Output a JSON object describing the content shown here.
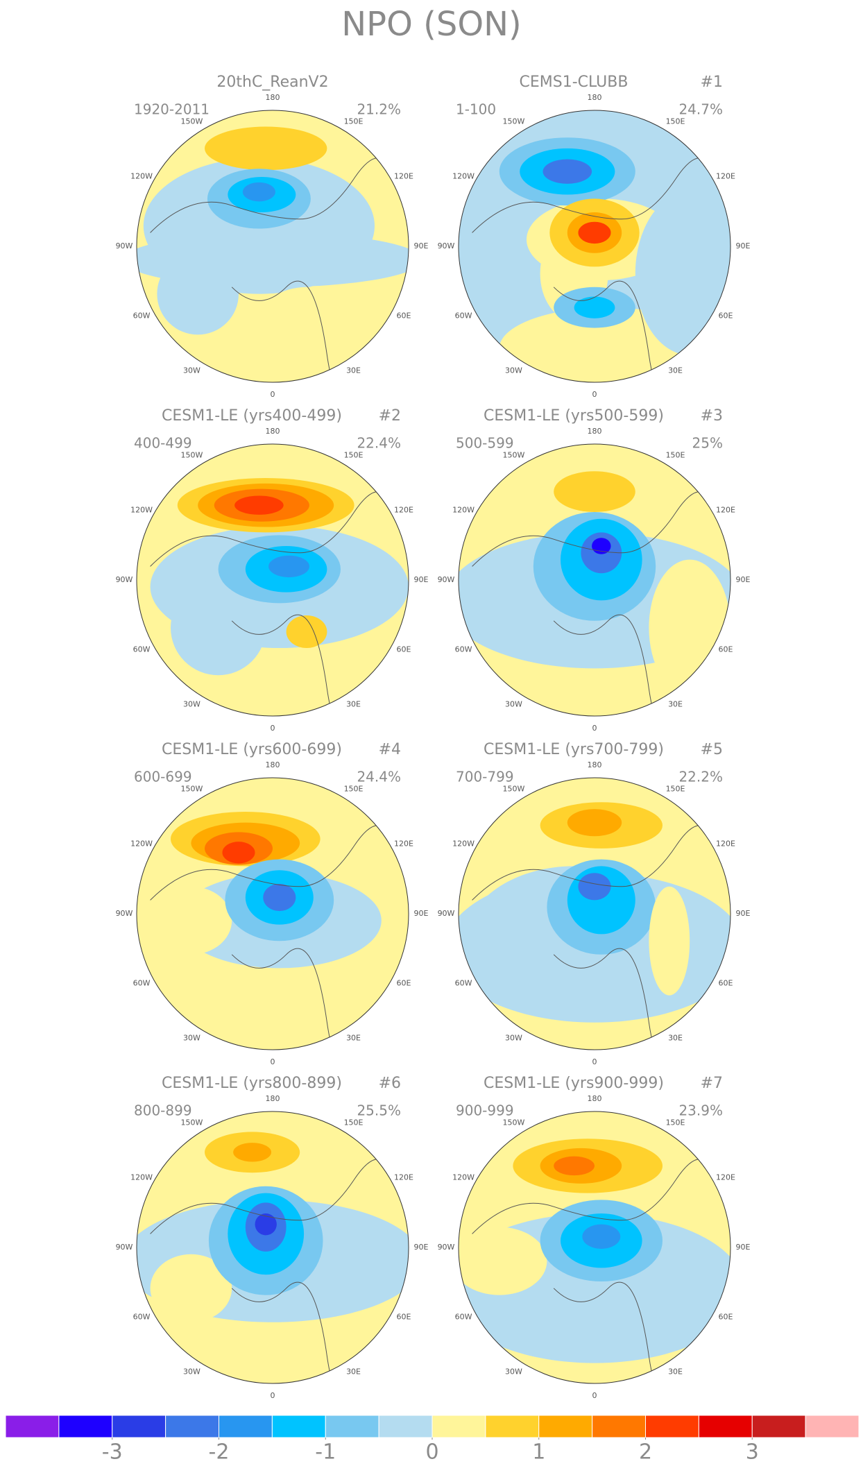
{
  "title": "NPO (SON)",
  "longitude_labels": [
    "180",
    "150W",
    "150E",
    "120W",
    "120E",
    "90W",
    "90E",
    "60W",
    "60E",
    "30W",
    "30E",
    "0"
  ],
  "panels": [
    {
      "title": "20thC_ReanV2",
      "period": "1920-2011",
      "percent": "21.2%"
    },
    {
      "title": "CEMS1-CLUBB",
      "number": "#1",
      "period": "1-100",
      "percent": "24.7%"
    },
    {
      "title": "CESM1-LE (yrs400-499)",
      "number": "#2",
      "period": "400-499",
      "percent": "22.4%"
    },
    {
      "title": "CESM1-LE (yrs500-599)",
      "number": "#3",
      "period": "500-599",
      "percent": "25%"
    },
    {
      "title": "CESM1-LE (yrs600-699)",
      "number": "#4",
      "period": "600-699",
      "percent": "24.4%"
    },
    {
      "title": "CESM1-LE (yrs700-799)",
      "number": "#5",
      "period": "700-799",
      "percent": "22.2%"
    },
    {
      "title": "CESM1-LE (yrs800-899)",
      "number": "#6",
      "period": "800-899",
      "percent": "25.5%"
    },
    {
      "title": "CESM1-LE (yrs900-999)",
      "number": "#7",
      "period": "900-999",
      "percent": "23.9%"
    }
  ],
  "colorbar": {
    "colors": [
      "#8a1ee8",
      "#1e00ff",
      "#2a3de6",
      "#3c78e8",
      "#2896f0",
      "#00c3ff",
      "#78c8f0",
      "#b4dcf0",
      "#fff59a",
      "#ffd22d",
      "#ffaa00",
      "#ff7800",
      "#ff3c00",
      "#e60000",
      "#c81e1e",
      "#ffb4b4"
    ],
    "clim": [
      -4,
      4
    ],
    "ticks": [
      -3,
      -2,
      -1,
      0,
      1,
      2,
      3
    ]
  }
}
